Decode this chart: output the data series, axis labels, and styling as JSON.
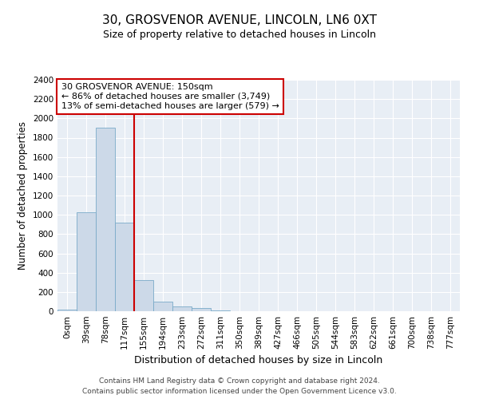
{
  "title_line1": "30, GROSVENOR AVENUE, LINCOLN, LN6 0XT",
  "title_line2": "Size of property relative to detached houses in Lincoln",
  "xlabel": "Distribution of detached houses by size in Lincoln",
  "ylabel": "Number of detached properties",
  "bar_color": "#ccd9e8",
  "bar_edge_color": "#7aaac8",
  "vline_color": "#cc0000",
  "categories": [
    "0sqm",
    "39sqm",
    "78sqm",
    "117sqm",
    "155sqm",
    "194sqm",
    "233sqm",
    "272sqm",
    "311sqm",
    "350sqm",
    "389sqm",
    "427sqm",
    "466sqm",
    "505sqm",
    "544sqm",
    "583sqm",
    "622sqm",
    "661sqm",
    "700sqm",
    "738sqm",
    "777sqm"
  ],
  "values": [
    20,
    1025,
    1900,
    920,
    320,
    100,
    50,
    30,
    12,
    0,
    0,
    0,
    0,
    0,
    0,
    0,
    0,
    0,
    0,
    0,
    0
  ],
  "ylim": [
    0,
    2400
  ],
  "yticks": [
    0,
    200,
    400,
    600,
    800,
    1000,
    1200,
    1400,
    1600,
    1800,
    2000,
    2200,
    2400
  ],
  "annotation_text": "30 GROSVENOR AVENUE: 150sqm\n← 86% of detached houses are smaller (3,749)\n13% of semi-detached houses are larger (579) →",
  "annotation_box_color": "#ffffff",
  "annotation_box_edge": "#cc0000",
  "footer_line1": "Contains HM Land Registry data © Crown copyright and database right 2024.",
  "footer_line2": "Contains public sector information licensed under the Open Government Licence v3.0.",
  "plot_bg_color": "#e8eef5",
  "vline_index": 4
}
